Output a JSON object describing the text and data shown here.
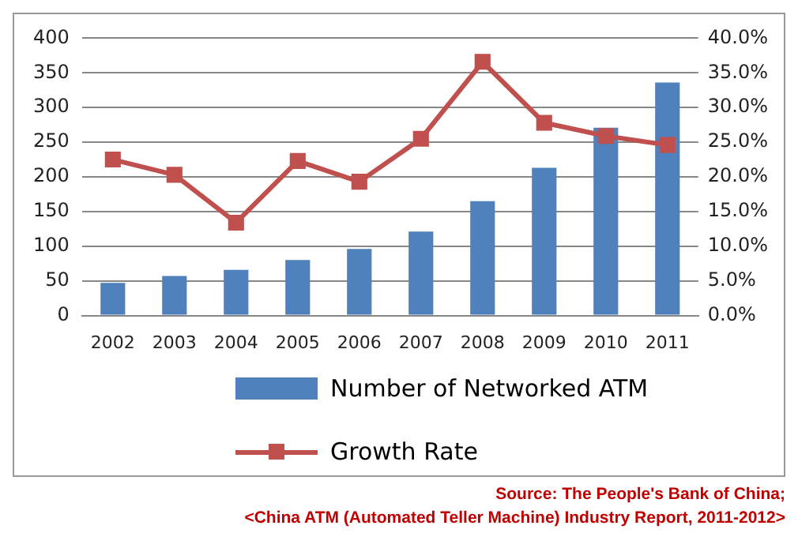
{
  "chart_data": {
    "type": "bar",
    "categories": [
      "2002",
      "2003",
      "2004",
      "2005",
      "2006",
      "2007",
      "2008",
      "2009",
      "2010",
      "2011"
    ],
    "series": [
      {
        "name": "Number of Networked ATM",
        "color": "#4f81bd",
        "values": [
          47,
          57,
          66,
          80,
          96,
          121,
          165,
          213,
          271,
          336
        ]
      },
      {
        "name": "Growth Rate",
        "type": "line",
        "axis": "y2",
        "color": "#c0504d",
        "marker": "square",
        "values": [
          22.5,
          20.3,
          13.4,
          22.3,
          19.3,
          25.5,
          36.6,
          27.8,
          25.9,
          24.6
        ]
      }
    ],
    "ylim": [
      0,
      400
    ],
    "yticks": [
      0,
      50,
      100,
      150,
      200,
      250,
      300,
      350,
      400
    ],
    "y2lim": [
      0,
      40
    ],
    "y2ticks": [
      {
        "value": 0,
        "label": "0.0%"
      },
      {
        "value": 5,
        "label": "5.0%"
      },
      {
        "value": 10,
        "label": "10.0%"
      },
      {
        "value": 15,
        "label": "15.0%"
      },
      {
        "value": 20,
        "label": "20.0%"
      },
      {
        "value": 25,
        "label": "25.0%"
      },
      {
        "value": 30,
        "label": "30.0%"
      },
      {
        "value": 35,
        "label": "35.0%"
      },
      {
        "value": 40,
        "label": "40.0%"
      }
    ],
    "grid": "y",
    "legend": "bottom",
    "annotations": [
      "Source: The People's Bank of China;",
      "<China ATM (Automated Teller Machine) Industry Report, 2011-2012>"
    ]
  }
}
